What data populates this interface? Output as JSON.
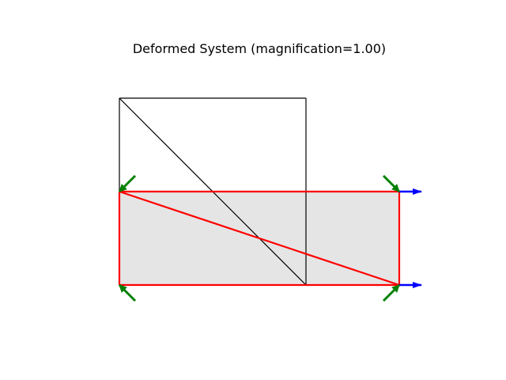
{
  "title": "Deformed System (magnification=1.00)",
  "colors": {
    "undeformed": "#000000",
    "deformed": "#ff0000",
    "fill": "#e5e5e5",
    "load": "#0000ff",
    "support": "#008000"
  },
  "undeformed": {
    "nodes": [
      [
        0,
        0
      ],
      [
        1,
        0
      ],
      [
        1,
        1
      ],
      [
        0,
        1
      ]
    ],
    "elements": [
      [
        0,
        1
      ],
      [
        1,
        2
      ],
      [
        2,
        3
      ],
      [
        3,
        0
      ],
      [
        3,
        1
      ]
    ]
  },
  "deformed": {
    "nodes": [
      [
        0,
        0
      ],
      [
        1.5,
        0
      ],
      [
        1.5,
        0.5
      ],
      [
        0,
        0.5
      ]
    ],
    "elements": [
      [
        0,
        1
      ],
      [
        1,
        2
      ],
      [
        2,
        3
      ],
      [
        3,
        0
      ],
      [
        3,
        1
      ]
    ]
  },
  "loads": [
    {
      "node": 1,
      "direction": "right"
    },
    {
      "node": 2,
      "direction": "right"
    }
  ],
  "supports": [
    0,
    1,
    2,
    3
  ]
}
